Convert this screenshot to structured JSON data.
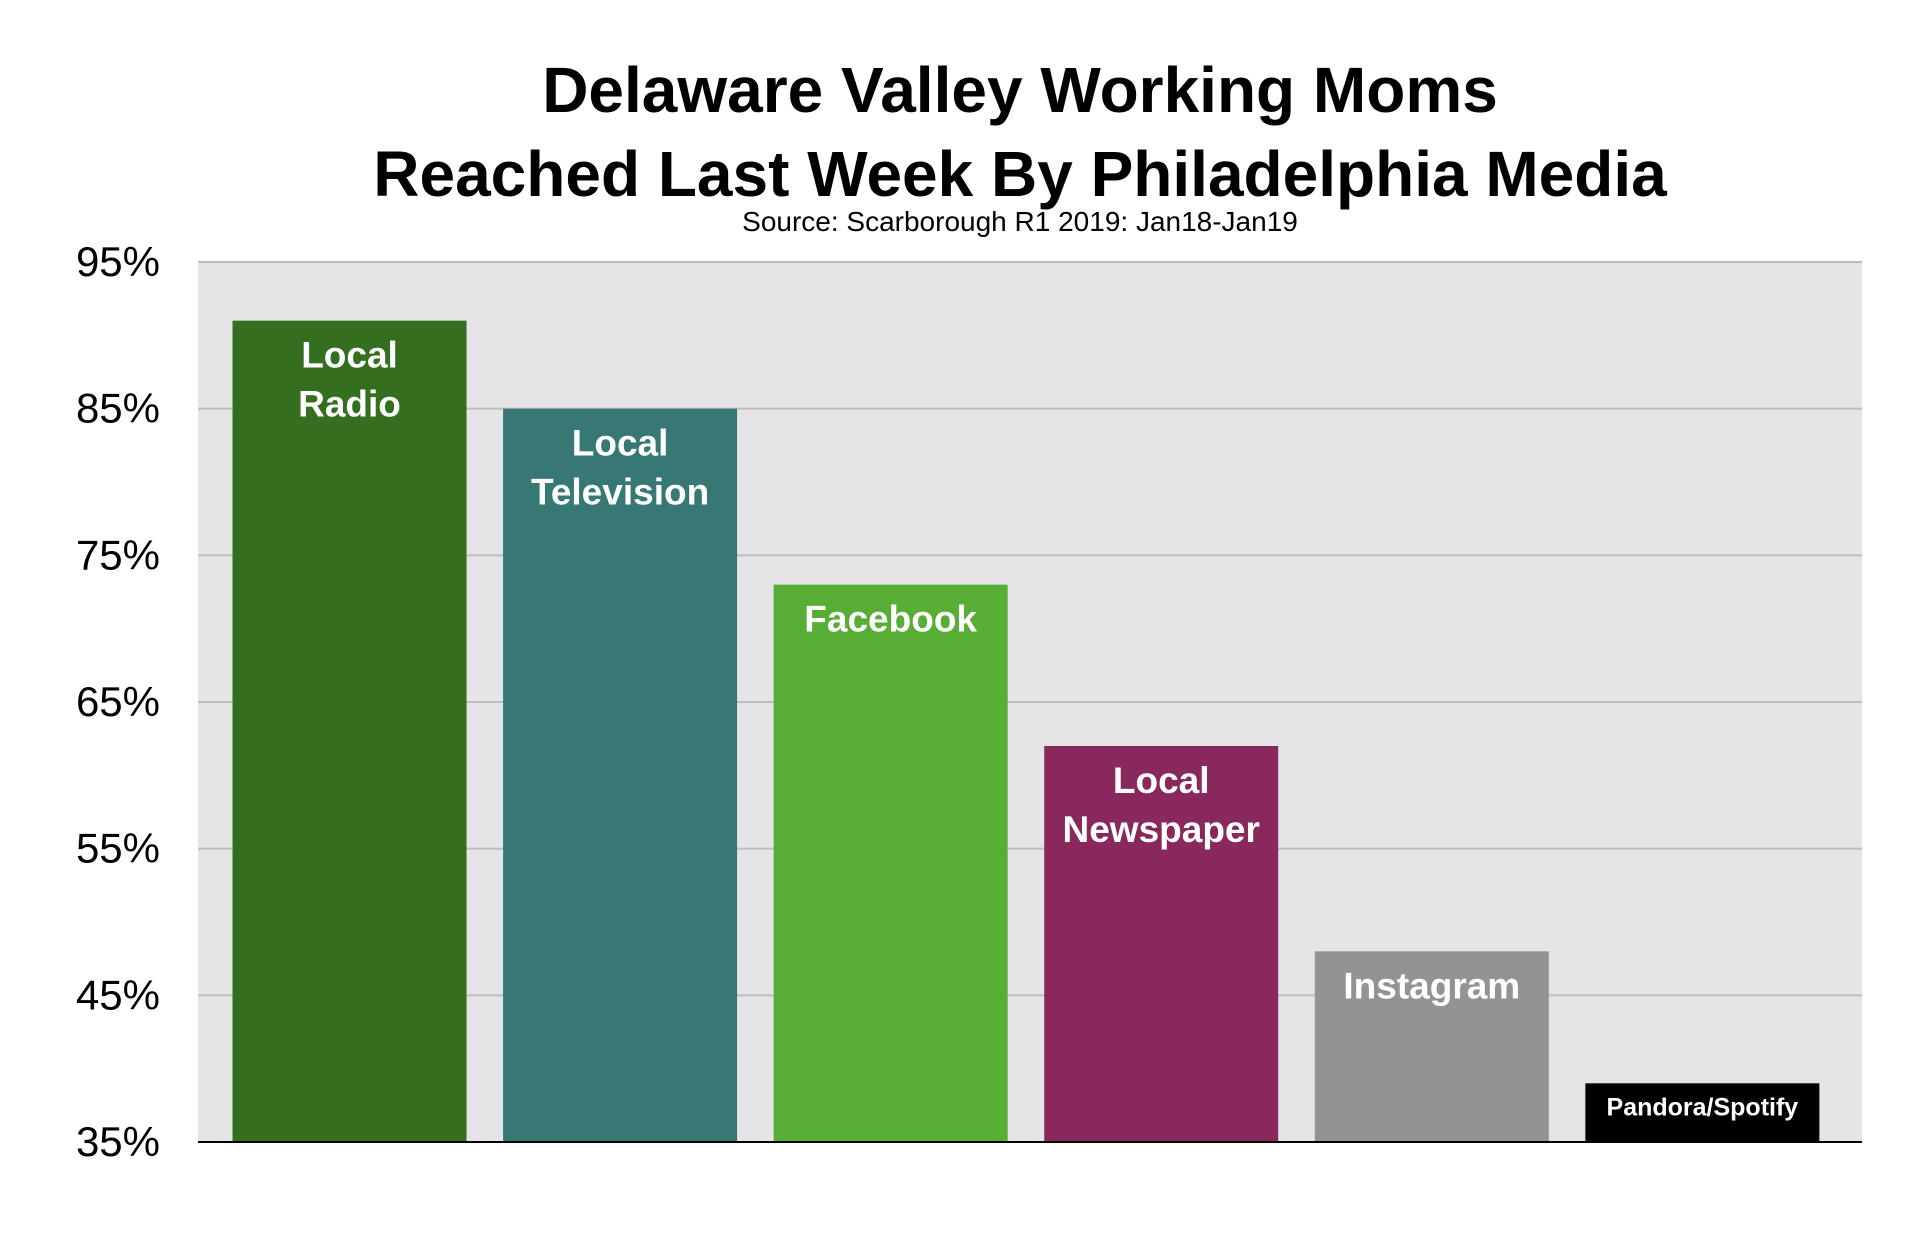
{
  "chart_data": {
    "type": "bar",
    "title_lines": [
      "Delaware Valley Working Moms",
      "Reached Last Week By Philadelphia Media"
    ],
    "subtitle": "Source: Scarborough R1 2019: Jan18-Jan19",
    "xlabel": "",
    "ylabel": "",
    "ylim": [
      35,
      95
    ],
    "yticks": [
      {
        "value": 35,
        "label": "35%"
      },
      {
        "value": 45,
        "label": "45%"
      },
      {
        "value": 55,
        "label": "55%"
      },
      {
        "value": 65,
        "label": "65%"
      },
      {
        "value": 75,
        "label": "75%"
      },
      {
        "value": 85,
        "label": "85%"
      },
      {
        "value": 95,
        "label": "95%"
      }
    ],
    "grid": true,
    "legend": "none",
    "bars": [
      {
        "label_lines": [
          "Local",
          "Radio"
        ],
        "value": 91,
        "color": "#336f1f"
      },
      {
        "label_lines": [
          "Local",
          "Television"
        ],
        "value": 85,
        "color": "#387874"
      },
      {
        "label_lines": [
          "Facebook"
        ],
        "value": 73,
        "color": "#58ad34"
      },
      {
        "label_lines": [
          "Local",
          "Newspaper"
        ],
        "value": 62,
        "color": "#88285d"
      },
      {
        "label_lines": [
          "Instagram"
        ],
        "value": 48,
        "color": "#939393"
      },
      {
        "label_lines": [
          "Pandora/Spotify"
        ],
        "value": 39,
        "color": "#000000"
      }
    ],
    "plot_background": "#e5e5e8",
    "gridline_color": "#bdbdbd"
  }
}
